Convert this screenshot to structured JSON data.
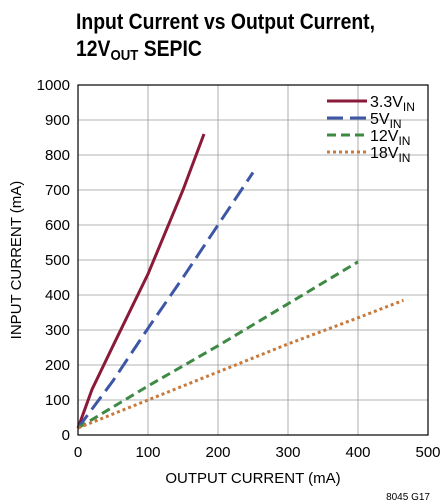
{
  "figure": {
    "title_line1": "Input Current vs Output Current,",
    "title_line2_pre": "12V",
    "title_line2_sub": "OUT",
    "title_line2_post": " SEPIC",
    "figure_id": "8045 G17"
  },
  "chart_data": {
    "type": "line",
    "title": "Input Current vs Output Current, 12VOUT SEPIC",
    "xlabel": "OUTPUT CURRENT (mA)",
    "ylabel": "INPUT CURRENT (mA)",
    "xlim": [
      0,
      500
    ],
    "ylim": [
      0,
      1000
    ],
    "xticks": [
      0,
      100,
      200,
      300,
      400,
      500
    ],
    "yticks": [
      0,
      100,
      200,
      300,
      400,
      500,
      600,
      700,
      800,
      900,
      1000
    ],
    "grid": true,
    "legend_position": "top-right",
    "series": [
      {
        "name": "3.3V",
        "name_sub": "IN",
        "color": "#8b1a3a",
        "dash": "solid",
        "x": [
          0,
          10,
          20,
          50,
          100,
          150,
          180
        ],
        "y": [
          20,
          75,
          130,
          255,
          460,
          700,
          860
        ]
      },
      {
        "name": "5V",
        "name_sub": "IN",
        "color": "#3d56a6",
        "dash": "long-dash",
        "x": [
          0,
          50,
          100,
          150,
          200,
          250
        ],
        "y": [
          20,
          155,
          305,
          450,
          600,
          750
        ]
      },
      {
        "name": "12V",
        "name_sub": "IN",
        "color": "#3e8a45",
        "dash": "dash",
        "x": [
          0,
          100,
          200,
          300,
          400
        ],
        "y": [
          20,
          140,
          255,
          375,
          495
        ]
      },
      {
        "name": "18V",
        "name_sub": "IN",
        "color": "#c8793a",
        "dash": "dot",
        "x": [
          0,
          100,
          200,
          300,
          400,
          465
        ],
        "y": [
          20,
          100,
          180,
          260,
          335,
          385
        ]
      }
    ]
  }
}
